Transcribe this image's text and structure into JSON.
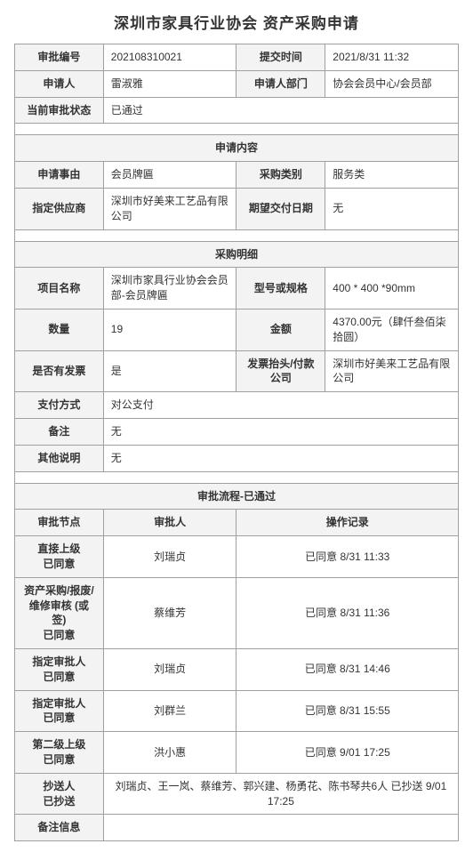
{
  "title": "深圳市家具行业协会 资产采购申请",
  "basic": {
    "approvalNo_label": "审批编号",
    "approvalNo": "202108310021",
    "submitTime_label": "提交时间",
    "submitTime": "2021/8/31 11:32",
    "applicant_label": "申请人",
    "applicant": "雷淑雅",
    "applicantDept_label": "申请人部门",
    "applicantDept": "协会会员中心/会员部",
    "status_label": "当前审批状态",
    "status": "已通过"
  },
  "sections": {
    "content": "申请内容",
    "detail": "采购明细",
    "approval": "审批流程-已通过"
  },
  "content": {
    "matter_label": "申请事由",
    "matter": "会员牌匾",
    "category_label": "采购类别",
    "category": "服务类",
    "supplier_label": "指定供应商",
    "supplier": "深圳市好美来工艺品有限公司",
    "deliveryDate_label": "期望交付日期",
    "deliveryDate": "无"
  },
  "detail": {
    "project_label": "项目名称",
    "project": "深圳市家具行业协会会员部-会员牌匾",
    "spec_label": "型号或规格",
    "spec": "400 * 400 *90mm",
    "qty_label": "数量",
    "qty": "19",
    "amount_label": "金额",
    "amount": "4370.00元（肆仟叁佰柒拾圆）",
    "invoice_label": "是否有发票",
    "invoice": "是",
    "invoiceCompany_label": "发票抬头/付款公司",
    "invoiceCompany": "深圳市好美来工艺品有限公司",
    "payMethod_label": "支付方式",
    "payMethod": "对公支付",
    "remark_label": "备注",
    "remark": "无",
    "otherNote_label": "其他说明",
    "otherNote": "无"
  },
  "approval": {
    "col_node": "审批节点",
    "col_approver": "审批人",
    "col_record": "操作记录",
    "rows": [
      {
        "node": "直接上级\n已同意",
        "approver": "刘瑞贞",
        "record": "已同意 8/31 11:33"
      },
      {
        "node": "资产采购/报废/维修审核 (或签)\n已同意",
        "approver": "蔡维芳",
        "record": "已同意 8/31 11:36"
      },
      {
        "node": "指定审批人\n已同意",
        "approver": "刘瑞贞",
        "record": "已同意 8/31 14:46"
      },
      {
        "node": "指定审批人\n已同意",
        "approver": "刘群兰",
        "record": "已同意 8/31 15:55"
      },
      {
        "node": "第二级上级\n已同意",
        "approver": "洪小惠",
        "record": "已同意 9/01 17:25"
      }
    ],
    "cc_label": "抄送人\n已抄送",
    "cc": "刘瑞贞、王一岚、蔡维芳、郭兴建、杨勇花、陈书琴共6人 已抄送 9/01 17:25",
    "remarkInfo_label": "备注信息",
    "remarkInfo": ""
  },
  "style": {
    "border_color": "#a0a0a0",
    "label_bg": "#f3f3f3",
    "value_bg": "#ffffff",
    "font_size": 12,
    "title_font_size": 17,
    "text_color": "#333333"
  }
}
